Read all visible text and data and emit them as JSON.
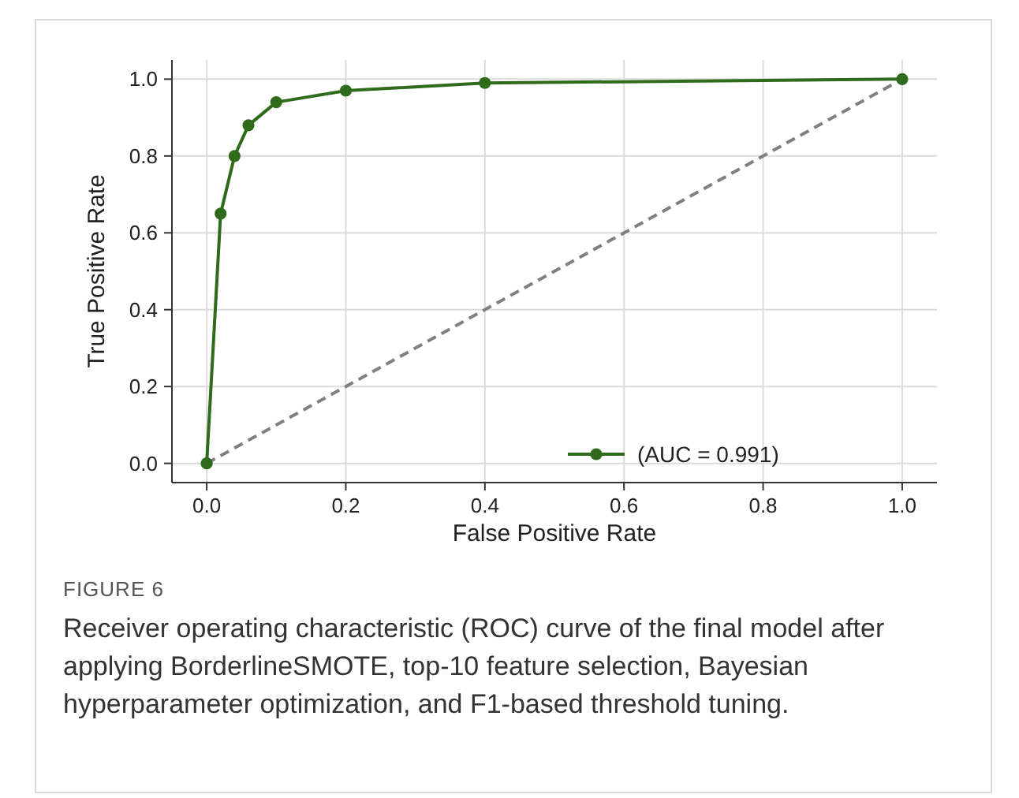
{
  "chart_data": {
    "type": "line",
    "xlabel": "False Positive Rate",
    "ylabel": "True Positive Rate",
    "xlim": [
      -0.05,
      1.05
    ],
    "ylim": [
      -0.05,
      1.05
    ],
    "xticks": [
      {
        "value": 0,
        "label": "0.0"
      },
      {
        "value": 0.2,
        "label": "0.2"
      },
      {
        "value": 0.4,
        "label": "0.4"
      },
      {
        "value": 0.6,
        "label": "0.6"
      },
      {
        "value": 0.8,
        "label": "0.8"
      },
      {
        "value": 1,
        "label": "1.0"
      }
    ],
    "yticks": [
      {
        "value": 0,
        "label": "0.0"
      },
      {
        "value": 0.2,
        "label": "0.2"
      },
      {
        "value": 0.4,
        "label": "0.4"
      },
      {
        "value": 0.6,
        "label": "0.6"
      },
      {
        "value": 0.8,
        "label": "0.8"
      },
      {
        "value": 1,
        "label": "1.0"
      }
    ],
    "grid": true,
    "legend": "bottom right",
    "series": [
      {
        "name": "(AUC = 0.991)",
        "color": "#2e6b1a",
        "marker": "circle",
        "line_style": "solid",
        "x": [
          0,
          0.02,
          0.04,
          0.06,
          0.1,
          0.2,
          0.4,
          1
        ],
        "values": [
          0,
          0.65,
          0.8,
          0.88,
          0.94,
          0.97,
          0.99,
          1
        ]
      },
      {
        "color": "#808080",
        "marker": "none",
        "line_style": "dashed",
        "x": [
          0,
          1
        ],
        "values": [
          0,
          1
        ]
      }
    ],
    "annotations": [
      "FIGURE 6",
      "Receiver operating characteristic (ROC) curve of the final model after applying BorderlineSMOTE, top-10 feature selection, Bayesian hyperparameter optimization, and F1-based threshold tuning."
    ]
  }
}
